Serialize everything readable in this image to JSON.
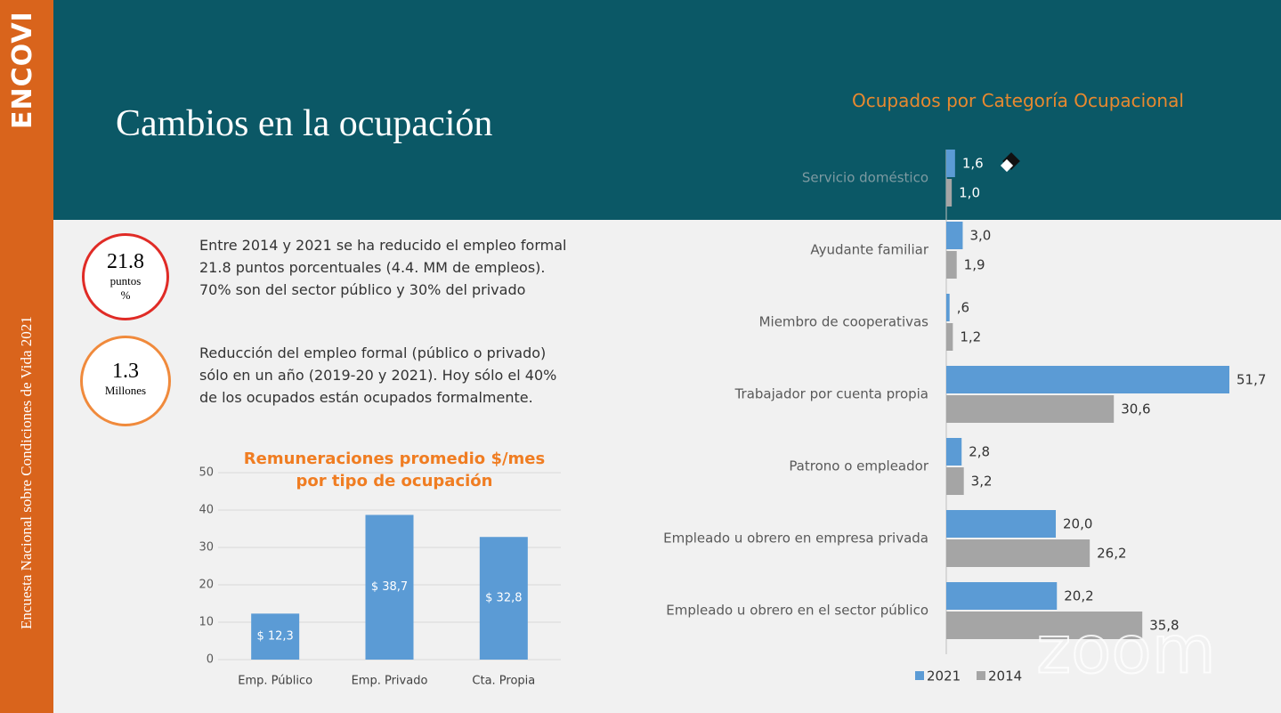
{
  "sidebar": {
    "brand": "ENCOVI",
    "subtitle": "Encuesta Nacional sobre Condiciones de Vida 2021"
  },
  "header": {
    "title": "Cambios en la ocupación"
  },
  "stats": [
    {
      "value": "21.8",
      "unit": [
        "puntos",
        "%"
      ],
      "text": [
        "Entre 2014 y 2021 se ha reducido el empleo formal",
        "21.8 puntos porcentuales (4.4. MM de empleos).",
        "70% son del sector público y 30% del privado"
      ]
    },
    {
      "value": "1.3",
      "unit": [
        "Millones"
      ],
      "text": [
        "Reducción del empleo formal (público o privado)",
        "sólo en un año (2019-20 y 2021). Hoy sólo el 40%",
        "de los ocupados están ocupados formalmente."
      ]
    }
  ],
  "chart_data": [
    {
      "type": "bar",
      "title": "Remuneraciones promedio $/mes por tipo de ocupación",
      "categories": [
        "Emp. Público",
        "Emp. Privado",
        "Cta. Propia"
      ],
      "values": [
        12.3,
        38.7,
        32.8
      ],
      "value_labels": [
        "$ 12,3",
        "$ 38,7",
        "$ 32,8"
      ],
      "color": "#5b9bd5",
      "ylim": [
        0,
        50
      ],
      "yticks": [
        0,
        10,
        20,
        30,
        40,
        50
      ],
      "grid": true
    },
    {
      "type": "barh",
      "title": "Ocupados por Categoría Ocupacional",
      "categories": [
        "Servicio doméstico",
        "Ayudante familiar",
        "Miembro de cooperativas",
        "Trabajador por cuenta propia",
        "Patrono o empleador",
        "Empleado u obrero en empresa privada",
        "Empleado u obrero en el sector público"
      ],
      "series": [
        {
          "name": "2021",
          "color": "#5b9bd5",
          "values": [
            1.6,
            3.0,
            0.6,
            51.7,
            2.8,
            20.0,
            20.2
          ],
          "value_labels": [
            "1,6",
            "3,0",
            ",6",
            "51,7",
            "2,8",
            "20,0",
            "20,2"
          ]
        },
        {
          "name": "2014",
          "color": "#a5a5a5",
          "values": [
            1.0,
            1.9,
            1.2,
            30.6,
            3.2,
            26.2,
            35.8
          ],
          "value_labels": [
            "1,0",
            "1,9",
            "1,2",
            "30,6",
            "3,2",
            "26,2",
            "35,8"
          ]
        }
      ],
      "legend": "bottom"
    }
  ],
  "watermark": "zoom"
}
